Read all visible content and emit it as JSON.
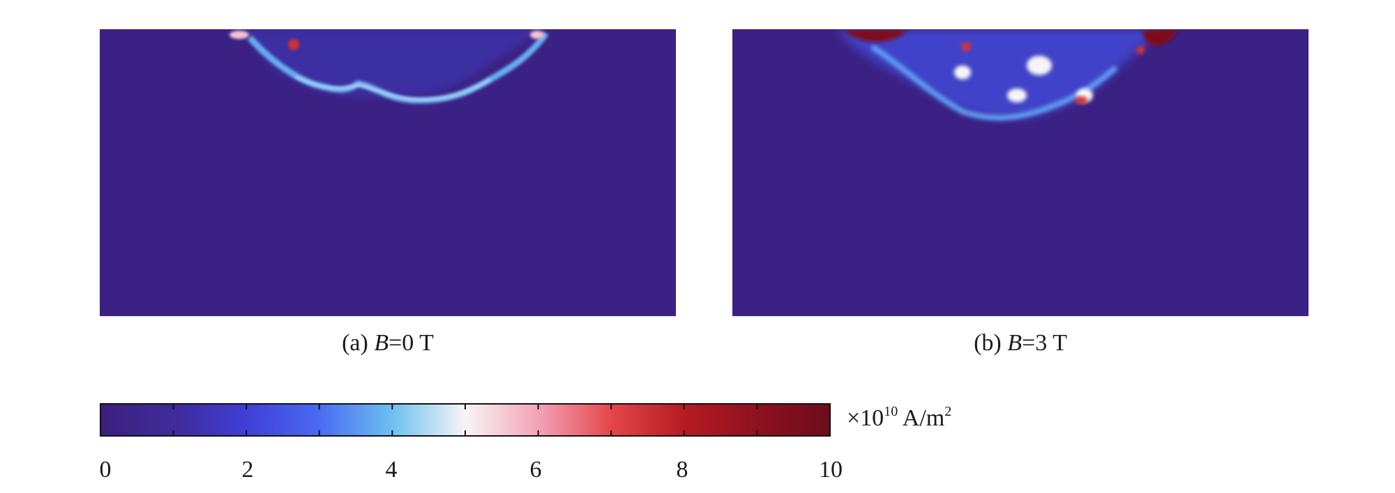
{
  "panels": [
    {
      "caption_prefix": "(a) ",
      "caption_var": "B",
      "caption_suffix": "=0 T",
      "background_value": 0.2,
      "ridge_peak_value": 4.8,
      "hotspot_value": 7.5
    },
    {
      "caption_prefix": "(b) ",
      "caption_var": "B",
      "caption_suffix": "=3 T",
      "background_value": 0.2,
      "region_peak_value": 5.0,
      "hotspot_value": 9.5
    }
  ],
  "colorbar": {
    "min": 0,
    "max": 10,
    "tick_labels": [
      "0",
      "2",
      "4",
      "6",
      "8",
      "10"
    ],
    "unit_prefix": "×10",
    "unit_exponent": "10",
    "unit_main": " A/m",
    "unit_sup": "2",
    "colormap": [
      [
        0,
        "#3a1f7d"
      ],
      [
        1,
        "#3f2b9a"
      ],
      [
        2,
        "#3f3fd6"
      ],
      [
        3,
        "#4a6af2"
      ],
      [
        4,
        "#6ec0f0"
      ],
      [
        5,
        "#f7f5f5"
      ],
      [
        6,
        "#f2a3b8"
      ],
      [
        7,
        "#e4474a"
      ],
      [
        8,
        "#b51b22"
      ],
      [
        9,
        "#8f111f"
      ],
      [
        10,
        "#6d0c1c"
      ]
    ]
  },
  "chart_data": {
    "type": "heatmap",
    "title": "",
    "xlabel": "",
    "ylabel": "",
    "value_range": [
      0,
      10
    ],
    "unit": "×10^10 A/m^2",
    "series": [
      {
        "name": "(a) B=0 T",
        "background": 0.2,
        "max_region": 4.8,
        "hotspot": 7.5
      },
      {
        "name": "(b) B=3 T",
        "background": 0.2,
        "max_region": 5.0,
        "hotspot": 9.5
      }
    ],
    "colorbar_ticks": [
      0,
      2,
      4,
      6,
      8,
      10
    ]
  }
}
